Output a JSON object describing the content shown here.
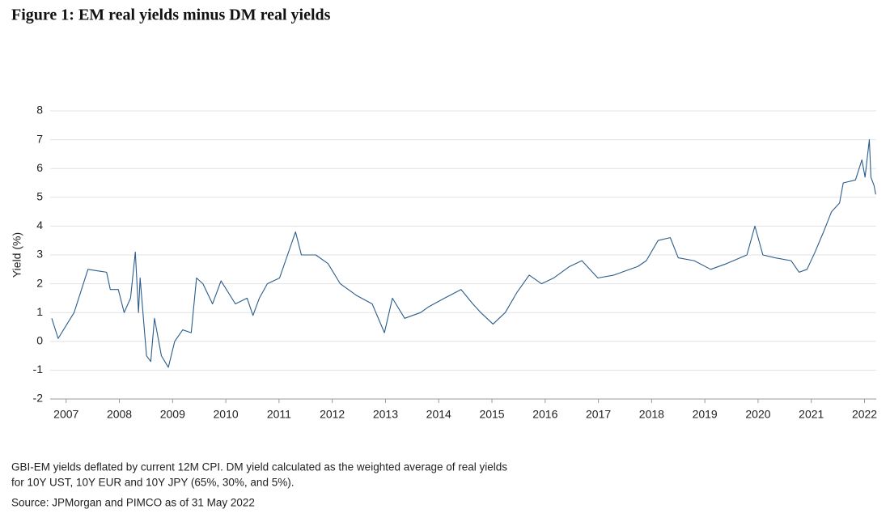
{
  "chart_data": {
    "type": "line",
    "title": "Figure 1: EM real yields minus DM real yields",
    "y_label": "Yield (%)",
    "notes": [
      "GBI-EM yields deflated by current 12M CPI. DM yield calculated as the weighted average of real yields",
      "for 10Y UST, 10Y EUR and 10Y JPY (65%, 30%, and 5%)."
    ],
    "source": "Source: JPMorgan and PIMCO as of 31 May 2022",
    "color": "#2b5c8a",
    "grid": true,
    "xlim": [
      2006.7,
      2022.22
    ],
    "xticks": [
      2007,
      2008,
      2009,
      2010,
      2011,
      2012,
      2013,
      2014,
      2015,
      2016,
      2017,
      2018,
      2019,
      2020,
      2021,
      2022
    ],
    "ylim": [
      -2,
      8
    ],
    "yticks": [
      -2,
      -1,
      0,
      1,
      2,
      3,
      4,
      5,
      6,
      7,
      8
    ],
    "x": [
      2006.73,
      2006.85,
      2007.15,
      2007.41,
      2007.76,
      2007.83,
      2007.98,
      2008.09,
      2008.21,
      2008.3,
      2008.36,
      2008.39,
      2008.51,
      2008.59,
      2008.66,
      2008.79,
      2008.92,
      2009.04,
      2009.19,
      2009.35,
      2009.45,
      2009.57,
      2009.75,
      2009.91,
      2010.18,
      2010.4,
      2010.51,
      2010.63,
      2010.78,
      2011.01,
      2011.16,
      2011.31,
      2011.42,
      2011.69,
      2011.92,
      2012.15,
      2012.45,
      2012.75,
      2012.98,
      2013.13,
      2013.36,
      2013.66,
      2013.81,
      2014.11,
      2014.42,
      2014.64,
      2014.79,
      2015.02,
      2015.25,
      2015.47,
      2015.7,
      2015.93,
      2016.16,
      2016.46,
      2016.69,
      2016.99,
      2017.29,
      2017.74,
      2017.9,
      2018.12,
      2018.35,
      2018.5,
      2018.8,
      2019.11,
      2019.41,
      2019.79,
      2019.94,
      2020.09,
      2020.32,
      2020.62,
      2020.77,
      2020.92,
      2021.07,
      2021.23,
      2021.38,
      2021.53,
      2021.6,
      2021.83,
      2021.95,
      2022.01,
      2022.09,
      2022.12,
      2022.18,
      2022.21
    ],
    "values": [
      0.8,
      0.1,
      1.0,
      2.5,
      2.4,
      1.8,
      1.8,
      1.0,
      1.5,
      3.1,
      1.0,
      2.2,
      -0.5,
      -0.7,
      0.8,
      -0.5,
      -0.9,
      0.0,
      0.4,
      0.3,
      2.2,
      2.0,
      1.3,
      2.1,
      1.3,
      1.5,
      0.9,
      1.5,
      2.0,
      2.2,
      3.0,
      3.8,
      3.0,
      3.0,
      2.7,
      2.0,
      1.6,
      1.3,
      0.3,
      1.5,
      0.8,
      1.0,
      1.2,
      1.5,
      1.8,
      1.3,
      1.0,
      0.6,
      1.0,
      1.7,
      2.3,
      2.0,
      2.2,
      2.6,
      2.8,
      2.2,
      2.3,
      2.6,
      2.8,
      3.5,
      3.6,
      2.9,
      2.8,
      2.5,
      2.7,
      3.0,
      4.0,
      3.0,
      2.9,
      2.8,
      2.4,
      2.5,
      3.1,
      3.8,
      4.5,
      4.8,
      5.5,
      5.6,
      6.3,
      5.7,
      7.0,
      5.7,
      5.4,
      5.1
    ]
  }
}
